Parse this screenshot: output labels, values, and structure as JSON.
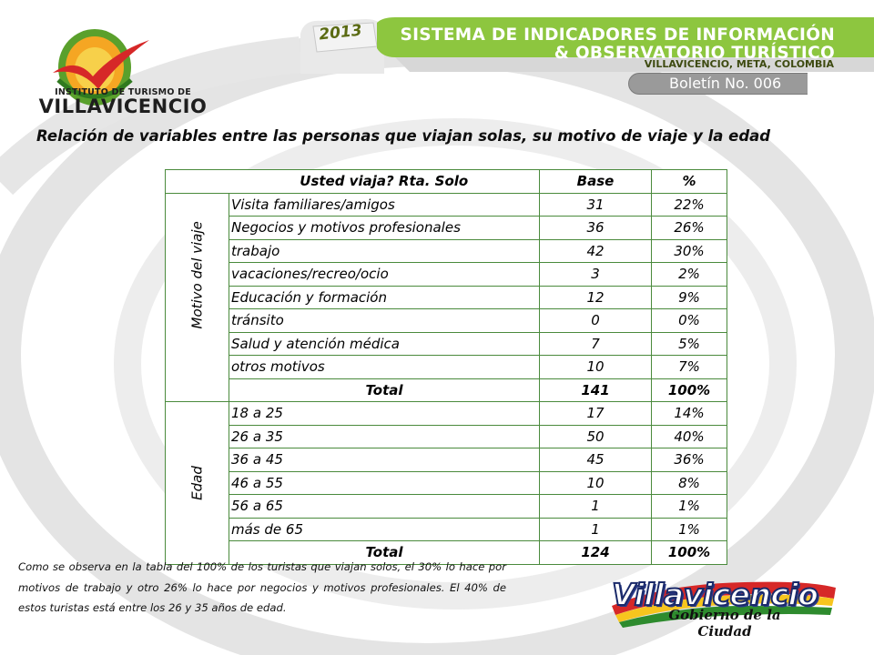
{
  "header": {
    "institute_line": "INSTITUTO DE TURISMO DE",
    "institute_city": "VILLAVICENCIO",
    "year": "2013",
    "banner_line1": "SISTEMA DE INDICADORES DE INFORMACIÓN",
    "banner_line2": "& OBSERVATORIO TURÍSTICO",
    "banner_location": "VILLAVICENCIO, META, COLOMBIA",
    "bulletin": "Boletín No. 006"
  },
  "title": "Relación de variables entre las personas que viajan solas, su motivo de viaje y la edad",
  "table": {
    "headers": {
      "label": "Usted viaja? Rta. Solo",
      "base": "Base",
      "pct": "%"
    },
    "groups": {
      "motivo": {
        "name": "Motivo del viaje",
        "rows": [
          {
            "label": "Visita familiares/amigos",
            "base": "31",
            "pct": "22%"
          },
          {
            "label": "Negocios y motivos profesionales",
            "base": "36",
            "pct": "26%"
          },
          {
            "label": "trabajo",
            "base": "42",
            "pct": "30%"
          },
          {
            "label": "vacaciones/recreo/ocio",
            "base": "3",
            "pct": "2%"
          },
          {
            "label": "Educación y formación",
            "base": "12",
            "pct": "9%"
          },
          {
            "label": "tránsito",
            "base": "0",
            "pct": "0%"
          },
          {
            "label": "Salud y atención médica",
            "base": "7",
            "pct": "5%"
          },
          {
            "label": "otros motivos",
            "base": "10",
            "pct": "7%"
          }
        ],
        "total": {
          "label": "Total",
          "base": "141",
          "pct": "100%"
        }
      },
      "edad": {
        "name": "Edad",
        "rows": [
          {
            "label": "18 a 25",
            "base": "17",
            "pct": "14%"
          },
          {
            "label": "26 a 35",
            "base": "50",
            "pct": "40%"
          },
          {
            "label": "36 a 45",
            "base": "45",
            "pct": "36%"
          },
          {
            "label": "46 a 55",
            "base": "10",
            "pct": "8%"
          },
          {
            "label": "56 a 65",
            "base": "1",
            "pct": "1%"
          },
          {
            "label": "más de 65",
            "base": "1",
            "pct": "1%"
          }
        ],
        "total": {
          "label": "Total",
          "base": "124",
          "pct": "100%"
        }
      }
    }
  },
  "note": "Como se observa en la tabla del 100% de los turistas que viajan solos, el 30% lo hace por motivos de trabajo y otro 26% lo hace por negocios y motivos profesionales. El 40% de estos turistas está entre los 26 y 35 años de edad.",
  "footer_logo": {
    "word": "Villavicencio",
    "tagline": "Gobierno de la Ciudad"
  },
  "colors": {
    "banner_green": "#8dc63f",
    "table_border": "#4a8a3c",
    "bulletin_gray": "#9a9a9a"
  }
}
